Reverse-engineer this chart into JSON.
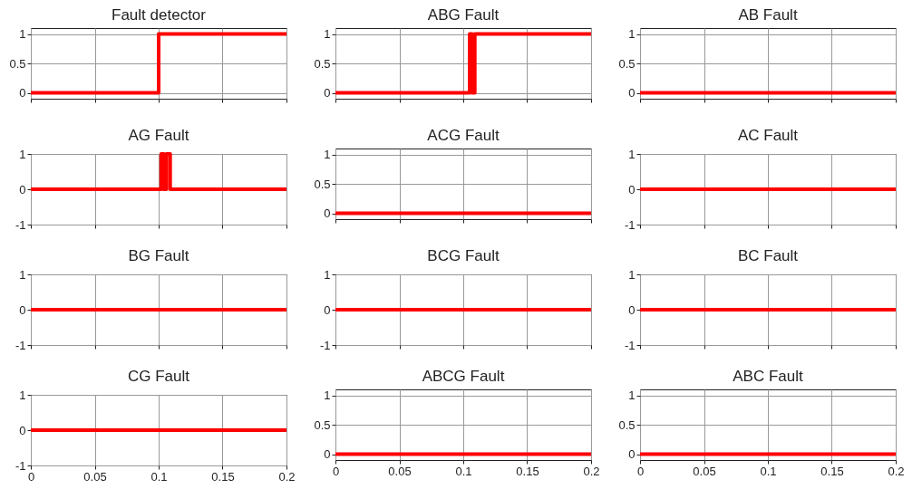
{
  "chart_data": [
    {
      "type": "step",
      "title": "Fault detector",
      "x": [
        0,
        0.1,
        0.2
      ],
      "series": [
        {
          "color": "#ff0000",
          "values": [
            0,
            1,
            1
          ]
        }
      ],
      "xlim": [
        0,
        0.2
      ],
      "xticks": [
        0,
        0.05,
        0.1,
        0.15,
        0.2
      ],
      "ylim": [
        -0.1,
        1.1
      ],
      "yticks": [
        0,
        0.5,
        1
      ],
      "grid": true,
      "tick_labels": "y"
    },
    {
      "type": "step",
      "title": "ABG Fault",
      "x": [
        0,
        0.105,
        0.107,
        0.109,
        0.2
      ],
      "series": [
        {
          "color": "#ff0000",
          "values": [
            0,
            1,
            0,
            1,
            1
          ]
        }
      ],
      "xlim": [
        0,
        0.2
      ],
      "xticks": [
        0,
        0.05,
        0.1,
        0.15,
        0.2
      ],
      "ylim": [
        -0.1,
        1.1
      ],
      "yticks": [
        0,
        0.5,
        1
      ],
      "grid": true,
      "tick_labels": "y"
    },
    {
      "type": "step",
      "title": "AB Fault",
      "x": [
        0,
        0.2
      ],
      "series": [
        {
          "color": "#ff0000",
          "values": [
            0,
            0
          ]
        }
      ],
      "xlim": [
        0,
        0.2
      ],
      "xticks": [
        0,
        0.05,
        0.1,
        0.15,
        0.2
      ],
      "ylim": [
        -0.1,
        1.1
      ],
      "yticks": [
        0,
        0.5,
        1
      ],
      "grid": true,
      "tick_labels": "y"
    },
    {
      "type": "step",
      "title": "AG Fault",
      "x": [
        0,
        0.102,
        0.104,
        0.106,
        0.109,
        0.2
      ],
      "series": [
        {
          "color": "#ff0000",
          "values": [
            0,
            1,
            0,
            1,
            0,
            0
          ]
        }
      ],
      "xlim": [
        0,
        0.2
      ],
      "xticks": [
        0,
        0.05,
        0.1,
        0.15,
        0.2
      ],
      "ylim": [
        -1,
        1
      ],
      "yticks": [
        -1,
        0,
        1
      ],
      "grid": true,
      "tick_labels": "y"
    },
    {
      "type": "step",
      "title": "ACG Fault",
      "x": [
        0,
        0.2
      ],
      "series": [
        {
          "color": "#ff0000",
          "values": [
            0,
            0
          ]
        }
      ],
      "xlim": [
        0,
        0.2
      ],
      "xticks": [
        0,
        0.05,
        0.1,
        0.15,
        0.2
      ],
      "ylim": [
        -0.1,
        1.1
      ],
      "yticks": [
        0,
        0.5,
        1
      ],
      "grid": true,
      "tick_labels": "y"
    },
    {
      "type": "step",
      "title": "AC Fault",
      "x": [
        0,
        0.2
      ],
      "series": [
        {
          "color": "#ff0000",
          "values": [
            0,
            0
          ]
        }
      ],
      "xlim": [
        0,
        0.2
      ],
      "xticks": [
        0,
        0.05,
        0.1,
        0.15,
        0.2
      ],
      "ylim": [
        -1,
        1
      ],
      "yticks": [
        -1,
        0,
        1
      ],
      "grid": true,
      "tick_labels": "y"
    },
    {
      "type": "step",
      "title": "BG Fault",
      "x": [
        0,
        0.2
      ],
      "series": [
        {
          "color": "#ff0000",
          "values": [
            0,
            0
          ]
        }
      ],
      "xlim": [
        0,
        0.2
      ],
      "xticks": [
        0,
        0.05,
        0.1,
        0.15,
        0.2
      ],
      "ylim": [
        -1,
        1
      ],
      "yticks": [
        -1,
        0,
        1
      ],
      "grid": true,
      "tick_labels": "y"
    },
    {
      "type": "step",
      "title": "BCG Fault",
      "x": [
        0,
        0.2
      ],
      "series": [
        {
          "color": "#ff0000",
          "values": [
            0,
            0
          ]
        }
      ],
      "xlim": [
        0,
        0.2
      ],
      "xticks": [
        0,
        0.05,
        0.1,
        0.15,
        0.2
      ],
      "ylim": [
        -1,
        1
      ],
      "yticks": [
        -1,
        0,
        1
      ],
      "grid": true,
      "tick_labels": "y"
    },
    {
      "type": "step",
      "title": "BC Fault",
      "x": [
        0,
        0.2
      ],
      "series": [
        {
          "color": "#ff0000",
          "values": [
            0,
            0
          ]
        }
      ],
      "xlim": [
        0,
        0.2
      ],
      "xticks": [
        0,
        0.05,
        0.1,
        0.15,
        0.2
      ],
      "ylim": [
        -1,
        1
      ],
      "yticks": [
        -1,
        0,
        1
      ],
      "grid": true,
      "tick_labels": "y"
    },
    {
      "type": "step",
      "title": "CG Fault",
      "x": [
        0,
        0.2
      ],
      "series": [
        {
          "color": "#ff0000",
          "values": [
            0,
            0
          ]
        }
      ],
      "xlim": [
        0,
        0.2
      ],
      "xticks": [
        0,
        0.05,
        0.1,
        0.15,
        0.2
      ],
      "ylim": [
        -1,
        1
      ],
      "yticks": [
        -1,
        0,
        1
      ],
      "grid": true
    },
    {
      "type": "step",
      "title": "ABCG Fault",
      "x": [
        0,
        0.2
      ],
      "series": [
        {
          "color": "#ff0000",
          "values": [
            0,
            0
          ]
        }
      ],
      "xlim": [
        0,
        0.2
      ],
      "xticks": [
        0,
        0.05,
        0.1,
        0.15,
        0.2
      ],
      "ylim": [
        -0.1,
        1.1
      ],
      "yticks": [
        0,
        0.5,
        1
      ],
      "grid": true
    },
    {
      "type": "step",
      "title": "ABC Fault",
      "x": [
        0,
        0.2
      ],
      "series": [
        {
          "color": "#ff0000",
          "values": [
            0,
            0
          ]
        }
      ],
      "xlim": [
        0,
        0.2
      ],
      "xticks": [
        0,
        0.05,
        0.1,
        0.15,
        0.2
      ],
      "ylim": [
        -0.1,
        1.1
      ],
      "yticks": [
        0,
        0.5,
        1
      ],
      "grid": true
    }
  ]
}
